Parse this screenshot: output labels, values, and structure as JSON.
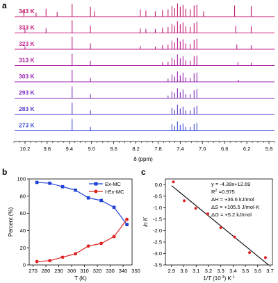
{
  "chart_data": [
    {
      "panel": "a",
      "type": "line",
      "subtype": "stacked-nmr-spectra",
      "xlabel": "δ (ppm)",
      "xlim": [
        10.4,
        5.7
      ],
      "x_reversed": true,
      "xticks": [
        10.2,
        9.8,
        9.4,
        9.0,
        8.6,
        8.2,
        7.8,
        7.4,
        7.0,
        6.6,
        6.2,
        5.8
      ],
      "xtick_labels": [
        "10.2",
        "9.8",
        "9.4",
        "9.0",
        "8.6",
        "8.2",
        "7.8",
        "7.4",
        "7.0",
        "6.6",
        "6.2",
        "5.8"
      ],
      "series": [
        {
          "name": "343 K",
          "color": "#c0186a",
          "peaks": [
            [
              10.22,
              0.55
            ],
            [
              10.0,
              0.3
            ],
            [
              9.82,
              0.6
            ],
            [
              9.62,
              0.35
            ],
            [
              9.35,
              0.95
            ],
            [
              9.02,
              0.75
            ],
            [
              8.95,
              0.4
            ],
            [
              8.12,
              0.55
            ],
            [
              8.02,
              0.45
            ],
            [
              7.85,
              0.4
            ],
            [
              7.72,
              0.5
            ],
            [
              7.62,
              0.55
            ],
            [
              7.55,
              0.8
            ],
            [
              7.5,
              0.65
            ],
            [
              7.45,
              1.0
            ],
            [
              7.4,
              0.75
            ],
            [
              7.35,
              0.9
            ],
            [
              7.3,
              0.6
            ],
            [
              7.22,
              0.55
            ],
            [
              7.15,
              0.85
            ],
            [
              7.1,
              0.9
            ],
            [
              6.98,
              0.4
            ],
            [
              6.42,
              0.85
            ],
            [
              6.12,
              0.8
            ]
          ]
        },
        {
          "name": "333 K",
          "color": "#c41a7a",
          "peaks": [
            [
              10.2,
              0.3
            ],
            [
              9.82,
              0.35
            ],
            [
              9.35,
              0.95
            ],
            [
              9.02,
              0.55
            ],
            [
              8.12,
              0.35
            ],
            [
              8.02,
              0.3
            ],
            [
              7.85,
              0.3
            ],
            [
              7.72,
              0.4
            ],
            [
              7.62,
              0.45
            ],
            [
              7.55,
              0.7
            ],
            [
              7.5,
              0.55
            ],
            [
              7.45,
              0.9
            ],
            [
              7.4,
              0.65
            ],
            [
              7.35,
              0.8
            ],
            [
              7.3,
              0.5
            ],
            [
              7.22,
              0.45
            ],
            [
              7.15,
              0.75
            ],
            [
              7.1,
              0.85
            ],
            [
              6.4,
              0.55
            ],
            [
              6.12,
              0.5
            ]
          ]
        },
        {
          "name": "323 K",
          "color": "#bb1d8c",
          "peaks": [
            [
              10.2,
              0.2
            ],
            [
              9.35,
              0.95
            ],
            [
              9.02,
              0.45
            ],
            [
              8.12,
              0.25
            ],
            [
              7.85,
              0.2
            ],
            [
              7.72,
              0.3
            ],
            [
              7.62,
              0.35
            ],
            [
              7.55,
              0.65
            ],
            [
              7.5,
              0.5
            ],
            [
              7.45,
              0.85
            ],
            [
              7.4,
              0.6
            ],
            [
              7.35,
              0.75
            ],
            [
              7.3,
              0.45
            ],
            [
              7.22,
              0.4
            ],
            [
              7.15,
              0.7
            ],
            [
              7.1,
              0.8
            ],
            [
              6.38,
              0.35
            ],
            [
              6.12,
              0.3
            ]
          ]
        },
        {
          "name": "313 K",
          "color": "#ad1f9f",
          "peaks": [
            [
              9.35,
              0.9
            ],
            [
              9.02,
              0.35
            ],
            [
              7.72,
              0.25
            ],
            [
              7.62,
              0.3
            ],
            [
              7.55,
              0.6
            ],
            [
              7.5,
              0.45
            ],
            [
              7.45,
              0.85
            ],
            [
              7.4,
              0.55
            ],
            [
              7.35,
              0.7
            ],
            [
              7.3,
              0.4
            ],
            [
              7.22,
              0.35
            ],
            [
              7.15,
              0.7
            ],
            [
              7.1,
              0.75
            ],
            [
              6.36,
              0.25
            ],
            [
              6.12,
              0.2
            ]
          ]
        },
        {
          "name": "303 K",
          "color": "#9a24b2",
          "peaks": [
            [
              9.35,
              0.9
            ],
            [
              9.02,
              0.3
            ],
            [
              7.62,
              0.25
            ],
            [
              7.55,
              0.55
            ],
            [
              7.5,
              0.4
            ],
            [
              7.45,
              0.8
            ],
            [
              7.4,
              0.5
            ],
            [
              7.35,
              0.7
            ],
            [
              7.3,
              0.35
            ],
            [
              7.22,
              0.3
            ],
            [
              7.15,
              0.65
            ],
            [
              7.1,
              0.7
            ],
            [
              6.35,
              0.15
            ]
          ]
        },
        {
          "name": "293 K",
          "color": "#7f2cbf",
          "peaks": [
            [
              9.35,
              0.9
            ],
            [
              9.02,
              0.3
            ],
            [
              7.62,
              0.2
            ],
            [
              7.55,
              0.5
            ],
            [
              7.5,
              0.4
            ],
            [
              7.45,
              0.75
            ],
            [
              7.4,
              0.45
            ],
            [
              7.35,
              0.65
            ],
            [
              7.3,
              0.3
            ],
            [
              7.22,
              0.3
            ],
            [
              7.15,
              0.6
            ],
            [
              7.1,
              0.7
            ]
          ]
        },
        {
          "name": "283 K",
          "color": "#5b38c8",
          "peaks": [
            [
              9.35,
              0.9
            ],
            [
              9.02,
              0.3
            ],
            [
              7.55,
              0.5
            ],
            [
              7.5,
              0.35
            ],
            [
              7.45,
              0.75
            ],
            [
              7.4,
              0.45
            ],
            [
              7.35,
              0.6
            ],
            [
              7.3,
              0.3
            ],
            [
              7.22,
              0.3
            ],
            [
              7.15,
              0.55
            ],
            [
              7.1,
              0.65
            ]
          ]
        },
        {
          "name": "273 K",
          "color": "#3c4fd6",
          "peaks": [
            [
              9.35,
              0.9
            ],
            [
              9.02,
              0.3
            ],
            [
              7.55,
              0.5
            ],
            [
              7.5,
              0.35
            ],
            [
              7.45,
              0.7
            ],
            [
              7.4,
              0.45
            ],
            [
              7.35,
              0.55
            ],
            [
              7.3,
              0.3
            ],
            [
              7.22,
              0.3
            ],
            [
              7.15,
              0.5
            ],
            [
              7.1,
              0.6
            ]
          ]
        }
      ]
    },
    {
      "panel": "b",
      "type": "line",
      "xlabel": "T (K)",
      "ylabel": "Percent (%)",
      "xlim": [
        267,
        347
      ],
      "ylim": [
        0,
        100
      ],
      "xticks": [
        270,
        280,
        290,
        300,
        310,
        320,
        330,
        340,
        350
      ],
      "yticks": [
        0,
        20,
        40,
        60,
        80,
        100
      ],
      "legend_position": "top-right",
      "x": [
        273,
        283,
        293,
        303,
        313,
        323,
        333,
        343
      ],
      "series": [
        {
          "name": "Ex-MC",
          "color": "#1f3fd6",
          "values": [
            96,
            95,
            91,
            87,
            78,
            75,
            67,
            47
          ]
        },
        {
          "name": "I-Ex-MC",
          "color": "#e02020",
          "values": [
            4,
            5,
            9,
            13,
            22,
            25,
            33,
            53
          ]
        }
      ]
    },
    {
      "panel": "c",
      "type": "scatter",
      "xlabel_prefix": "1/",
      "xlabel_var": "T",
      "xlabel_suffix": " (10",
      "xlabel_sup": "-3",
      "xlabel_tail": ") K",
      "xlabel_sup2": "-1",
      "ylabel_var": "ln K",
      "xlim": [
        2.85,
        3.72
      ],
      "ylim": [
        -3.5,
        0.25
      ],
      "xticks": [
        2.9,
        3.0,
        3.1,
        3.2,
        3.3,
        3.4,
        3.5,
        3.6,
        3.7
      ],
      "yticks": [
        0.0,
        -0.5,
        -1.0,
        -1.5,
        -2.0,
        -2.5,
        -3.0,
        -3.5
      ],
      "points_color": "#e02020",
      "fit_color": "#000000",
      "x": [
        2.915,
        3.003,
        3.096,
        3.195,
        3.3,
        3.413,
        3.534,
        3.663
      ],
      "y": [
        0.12,
        -0.7,
        -1.03,
        -1.27,
        -1.87,
        -2.28,
        -2.96,
        -3.18
      ],
      "fit": {
        "slope": -4.39,
        "intercept": 12.69
      },
      "annotations": {
        "equation": "y = -4.39x+12.69",
        "r2_prefix": "R",
        "r2_sup": "2",
        "r2_value": " =0.975",
        "dh_symbol": "Δ",
        "dh_var": "H",
        "dh_value": " = +36.6 kJ/mol",
        "ds_symbol": "Δ",
        "ds_var": "S",
        "ds_value": " = +105.5 J/mol·K",
        "dg_symbol": "Δ",
        "dg_var": "G",
        "dg_value": " = +5.2 kJ/mol"
      }
    }
  ],
  "panels": {
    "a": "a",
    "b": "b",
    "c": "c"
  }
}
